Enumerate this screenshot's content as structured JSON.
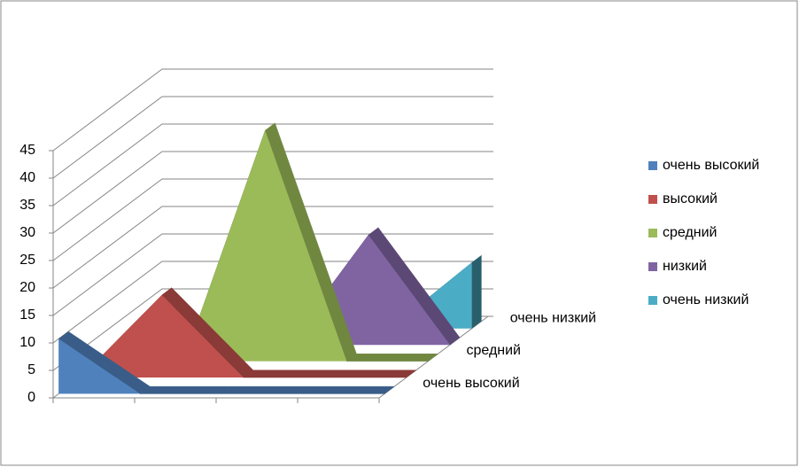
{
  "chart_data": {
    "type": "area",
    "series": [
      {
        "name": "очень высокий",
        "color": "#4f81bd",
        "values": [
          10,
          0,
          0,
          0,
          0
        ]
      },
      {
        "name": "высокий",
        "color": "#c0504d",
        "values": [
          0,
          15,
          0,
          0,
          0
        ]
      },
      {
        "name": "средний",
        "color": "#9bbb59",
        "values": [
          0,
          0,
          42,
          0,
          0
        ]
      },
      {
        "name": "низкий",
        "color": "#8064a2",
        "values": [
          0,
          0,
          0,
          20,
          0
        ]
      },
      {
        "name": "очень низкий",
        "color": "#4bacc6",
        "values": [
          0,
          0,
          0,
          0,
          12
        ]
      }
    ],
    "depth_labels": [
      "очень высокий",
      "средний",
      "очень низкий"
    ],
    "ylim": [
      0,
      45
    ],
    "yticks": [
      0,
      5,
      10,
      15,
      20,
      25,
      30,
      35,
      40,
      45
    ],
    "grid": true,
    "legend": "right"
  }
}
